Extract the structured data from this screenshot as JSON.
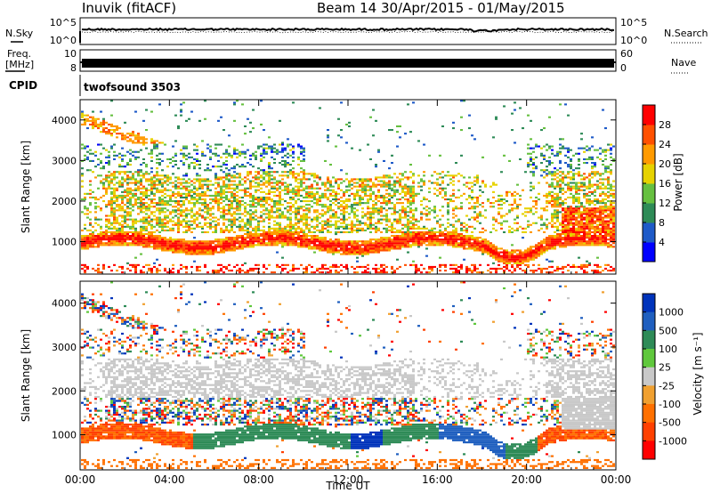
{
  "header": {
    "title": "Inuvik (fitACF)",
    "beam_info": "Beam 14  30/Apr/2015 - 01/May/2015"
  },
  "top_panel": {
    "left_label": "N.Sky",
    "left_ticks": [
      "10^5",
      "10^0"
    ],
    "right_label": "N.Search",
    "right_ticks": [
      "10^5",
      "10^0"
    ]
  },
  "freq_panel": {
    "left_label": "Freq.",
    "left_unit": "[MHz]",
    "left_ticks": [
      "10",
      "8"
    ],
    "right_label": "Nave",
    "right_ticks": [
      "60",
      "0"
    ]
  },
  "cpid_panel": {
    "label": "CPID",
    "text": "twofsound 3503"
  },
  "chart_data": [
    {
      "type": "heatmap",
      "name": "power",
      "ylabel": "Slant Range [km]",
      "yticks": [
        1000,
        2000,
        3000,
        4000
      ],
      "ylim": [
        200,
        4500
      ],
      "xticks": [
        "00:00",
        "04:00",
        "08:00",
        "12:00",
        "16:00",
        "20:00",
        "00:00"
      ],
      "xlim_hours": [
        0,
        24
      ],
      "colorbar_label": "Power [dB]",
      "colorbar_ticks": [
        "4",
        "8",
        "12",
        "16",
        "20",
        "24",
        "28"
      ],
      "colorbar_colors": [
        "#0000ff",
        "#1e5ac8",
        "#2e8b57",
        "#66c040",
        "#e6d200",
        "#ff9a00",
        "#ff5000",
        "#ff0000"
      ]
    },
    {
      "type": "heatmap",
      "name": "velocity",
      "ylabel": "Slant Range [km]",
      "yticks": [
        1000,
        2000,
        3000,
        4000
      ],
      "ylim": [
        200,
        4500
      ],
      "xticks": [
        "00:00",
        "04:00",
        "08:00",
        "12:00",
        "16:00",
        "20:00",
        "00:00"
      ],
      "xlim_hours": [
        0,
        24
      ],
      "xlabel": "Time UT",
      "colorbar_label": "Velocity [m s⁻¹]",
      "colorbar_ticks": [
        "1000",
        "500",
        "100",
        "25",
        "-25",
        "-100",
        "-500",
        "-1000"
      ],
      "colorbar_colors": [
        "#0033bb",
        "#1f5fbf",
        "#2e8b57",
        "#5fc83c",
        "#c8c8c8",
        "#f0a030",
        "#ff7000",
        "#ff4000",
        "#ff0000"
      ]
    }
  ]
}
